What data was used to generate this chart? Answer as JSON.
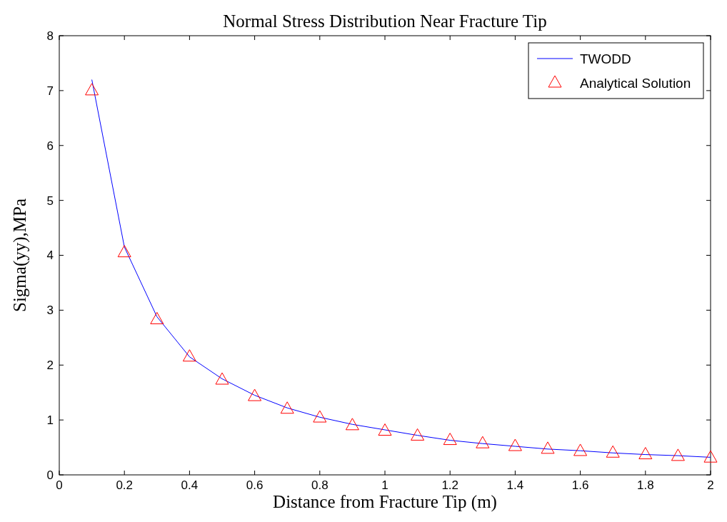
{
  "chart_data": {
    "type": "line",
    "title": "Normal Stress Distribution Near Fracture Tip",
    "xlabel": "Distance from Fracture Tip (m)",
    "ylabel": "Sigma(yy),MPa",
    "x": [
      0.1,
      0.2,
      0.3,
      0.4,
      0.5,
      0.6,
      0.7,
      0.8,
      0.9,
      1.0,
      1.1,
      1.2,
      1.3,
      1.4,
      1.5,
      1.6,
      1.7,
      1.8,
      1.9,
      2.0
    ],
    "xlim": [
      0,
      2
    ],
    "xticks": [
      0,
      0.2,
      0.4,
      0.6,
      0.8,
      1,
      1.2,
      1.4,
      1.6,
      1.8,
      2
    ],
    "ylim": [
      0,
      8
    ],
    "yticks": [
      0,
      1,
      2,
      3,
      4,
      5,
      6,
      7,
      8
    ],
    "grid": false,
    "legend": "top right",
    "series": [
      {
        "name": "TWODD",
        "color": "#0000ff",
        "marker": "none",
        "line_style": "solid",
        "values": [
          7.2,
          4.15,
          2.88,
          2.15,
          1.75,
          1.45,
          1.22,
          1.05,
          0.92,
          0.82,
          0.72,
          0.63,
          0.57,
          0.52,
          0.47,
          0.44,
          0.4,
          0.37,
          0.35,
          0.32
        ]
      },
      {
        "name": "Analytical Solution",
        "type": "scatter",
        "color": "#ff0000",
        "marker": "triangle",
        "values": [
          7.0,
          4.05,
          2.83,
          2.15,
          1.73,
          1.43,
          1.2,
          1.04,
          0.9,
          0.8,
          0.71,
          0.63,
          0.57,
          0.52,
          0.47,
          0.43,
          0.4,
          0.37,
          0.34,
          0.31
        ]
      }
    ]
  }
}
